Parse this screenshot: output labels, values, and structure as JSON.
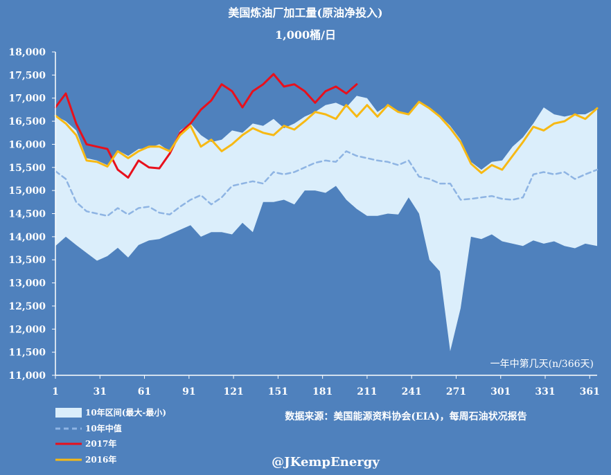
{
  "chart_data": {
    "type": "area",
    "title": "美国炼油厂加工量(原油净投入)",
    "subtitle": "1,000桶/日",
    "xlabel": "一年中第几天(n/366天)",
    "ylabel": "",
    "xlim": [
      1,
      366
    ],
    "ylim": [
      11000,
      18000
    ],
    "x_ticks": [
      1,
      31,
      61,
      91,
      121,
      151,
      181,
      211,
      241,
      271,
      301,
      331,
      361
    ],
    "y_ticks": [
      11000,
      11500,
      12000,
      12500,
      13000,
      13500,
      14000,
      14500,
      15000,
      15500,
      16000,
      16500,
      17000,
      17500,
      18000
    ],
    "y_tick_labels": [
      "11,000",
      "11,500",
      "12,000",
      "12,500",
      "13,000",
      "13,500",
      "14,000",
      "14,500",
      "15,000",
      "15,500",
      "16,000",
      "16,500",
      "17,000",
      "17,500",
      "18,000"
    ],
    "band": {
      "name": "10年区间(最大-最小)",
      "color": "#dbeefb",
      "x": [
        1,
        8,
        15,
        22,
        29,
        36,
        43,
        50,
        57,
        64,
        71,
        78,
        85,
        92,
        99,
        106,
        113,
        120,
        127,
        134,
        141,
        148,
        155,
        162,
        169,
        176,
        183,
        190,
        197,
        204,
        211,
        218,
        225,
        232,
        239,
        246,
        253,
        260,
        267,
        274,
        281,
        288,
        295,
        302,
        309,
        316,
        323,
        330,
        337,
        344,
        351,
        358,
        366
      ],
      "upper": [
        16620,
        16500,
        16300,
        15700,
        15650,
        15550,
        15870,
        15750,
        15900,
        15920,
        16000,
        15850,
        16300,
        16450,
        16200,
        16050,
        16100,
        16300,
        16250,
        16450,
        16400,
        16550,
        16350,
        16450,
        16600,
        16700,
        16850,
        16900,
        16800,
        17050,
        17000,
        16700,
        16850,
        16700,
        16650,
        16930,
        16800,
        16620,
        16400,
        16100,
        15620,
        15450,
        15620,
        15650,
        15950,
        16150,
        16450,
        16800,
        16650,
        16600,
        16650,
        16650,
        16780
      ],
      "lower": [
        13800,
        14000,
        13820,
        13650,
        13480,
        13580,
        13760,
        13550,
        13820,
        13920,
        13950,
        14050,
        14150,
        14250,
        14000,
        14100,
        14100,
        14050,
        14300,
        14100,
        14750,
        14750,
        14800,
        14700,
        15000,
        15000,
        14950,
        15100,
        14800,
        14600,
        14450,
        14450,
        14500,
        14480,
        14850,
        14500,
        13500,
        13250,
        11520,
        12450,
        14000,
        13950,
        14050,
        13900,
        13850,
        13800,
        13920,
        13850,
        13900,
        13800,
        13750,
        13850,
        13800
      ]
    },
    "series": [
      {
        "name": "10年中值",
        "color": "#8eb4e3",
        "dash": true,
        "x": [
          1,
          8,
          15,
          22,
          29,
          36,
          43,
          50,
          57,
          64,
          71,
          78,
          85,
          92,
          99,
          106,
          113,
          120,
          127,
          134,
          141,
          148,
          155,
          162,
          169,
          176,
          183,
          190,
          197,
          204,
          211,
          218,
          225,
          232,
          239,
          246,
          253,
          260,
          267,
          274,
          281,
          288,
          295,
          302,
          309,
          316,
          323,
          330,
          337,
          344,
          351,
          358,
          366
        ],
        "values": [
          15420,
          15250,
          14750,
          14550,
          14500,
          14450,
          14620,
          14480,
          14620,
          14650,
          14520,
          14480,
          14650,
          14800,
          14900,
          14700,
          14850,
          15100,
          15150,
          15200,
          15150,
          15400,
          15350,
          15400,
          15500,
          15600,
          15650,
          15620,
          15850,
          15750,
          15700,
          15650,
          15620,
          15550,
          15650,
          15300,
          15250,
          15150,
          15150,
          14800,
          14820,
          14850,
          14880,
          14820,
          14800,
          14850,
          15350,
          15400,
          15350,
          15400,
          15250,
          15350,
          15450
        ]
      },
      {
        "name": "2017年",
        "color": "#e8101c",
        "dash": false,
        "x": [
          1,
          8,
          15,
          22,
          29,
          36,
          43,
          50,
          57,
          64,
          71,
          78,
          85,
          92,
          99,
          106,
          113,
          120,
          127,
          134,
          141,
          148,
          155,
          162,
          169,
          176,
          183,
          190,
          197,
          204
        ],
        "values": [
          16800,
          17100,
          16450,
          16000,
          15950,
          15900,
          15450,
          15280,
          15650,
          15500,
          15480,
          15800,
          16250,
          16450,
          16750,
          16950,
          17300,
          17150,
          16800,
          17150,
          17300,
          17520,
          17250,
          17300,
          17150,
          16900,
          17150,
          17250,
          17100,
          17300
        ]
      },
      {
        "name": "2016年",
        "color": "#f7b914",
        "dash": false,
        "x": [
          1,
          8,
          15,
          22,
          29,
          36,
          43,
          50,
          57,
          64,
          71,
          78,
          85,
          92,
          99,
          106,
          113,
          120,
          127,
          134,
          141,
          148,
          155,
          162,
          169,
          176,
          183,
          190,
          197,
          204,
          211,
          218,
          225,
          232,
          239,
          246,
          253,
          260,
          267,
          274,
          281,
          288,
          295,
          302,
          309,
          316,
          323,
          330,
          337,
          344,
          351,
          358,
          366
        ],
        "values": [
          16620,
          16450,
          16200,
          15650,
          15620,
          15520,
          15850,
          15700,
          15850,
          15950,
          15950,
          15850,
          16200,
          16400,
          15950,
          16100,
          15850,
          16000,
          16200,
          16350,
          16250,
          16200,
          16400,
          16320,
          16500,
          16700,
          16650,
          16550,
          16850,
          16600,
          16850,
          16600,
          16850,
          16700,
          16650,
          16920,
          16780,
          16600,
          16350,
          16050,
          15580,
          15380,
          15550,
          15450,
          15750,
          16050,
          16380,
          16300,
          16450,
          16500,
          16650,
          16550,
          16780
        ]
      }
    ],
    "legend": {
      "placement": "bottom-left",
      "entries": [
        "10年区间(最大-最小)",
        "10年中值",
        "2017年",
        "2016年"
      ]
    },
    "source_note": "数据来源：美国能源资料协会(EIA)，每周石油状况报告",
    "watermark": "@JKempEnergy",
    "grid": false
  }
}
